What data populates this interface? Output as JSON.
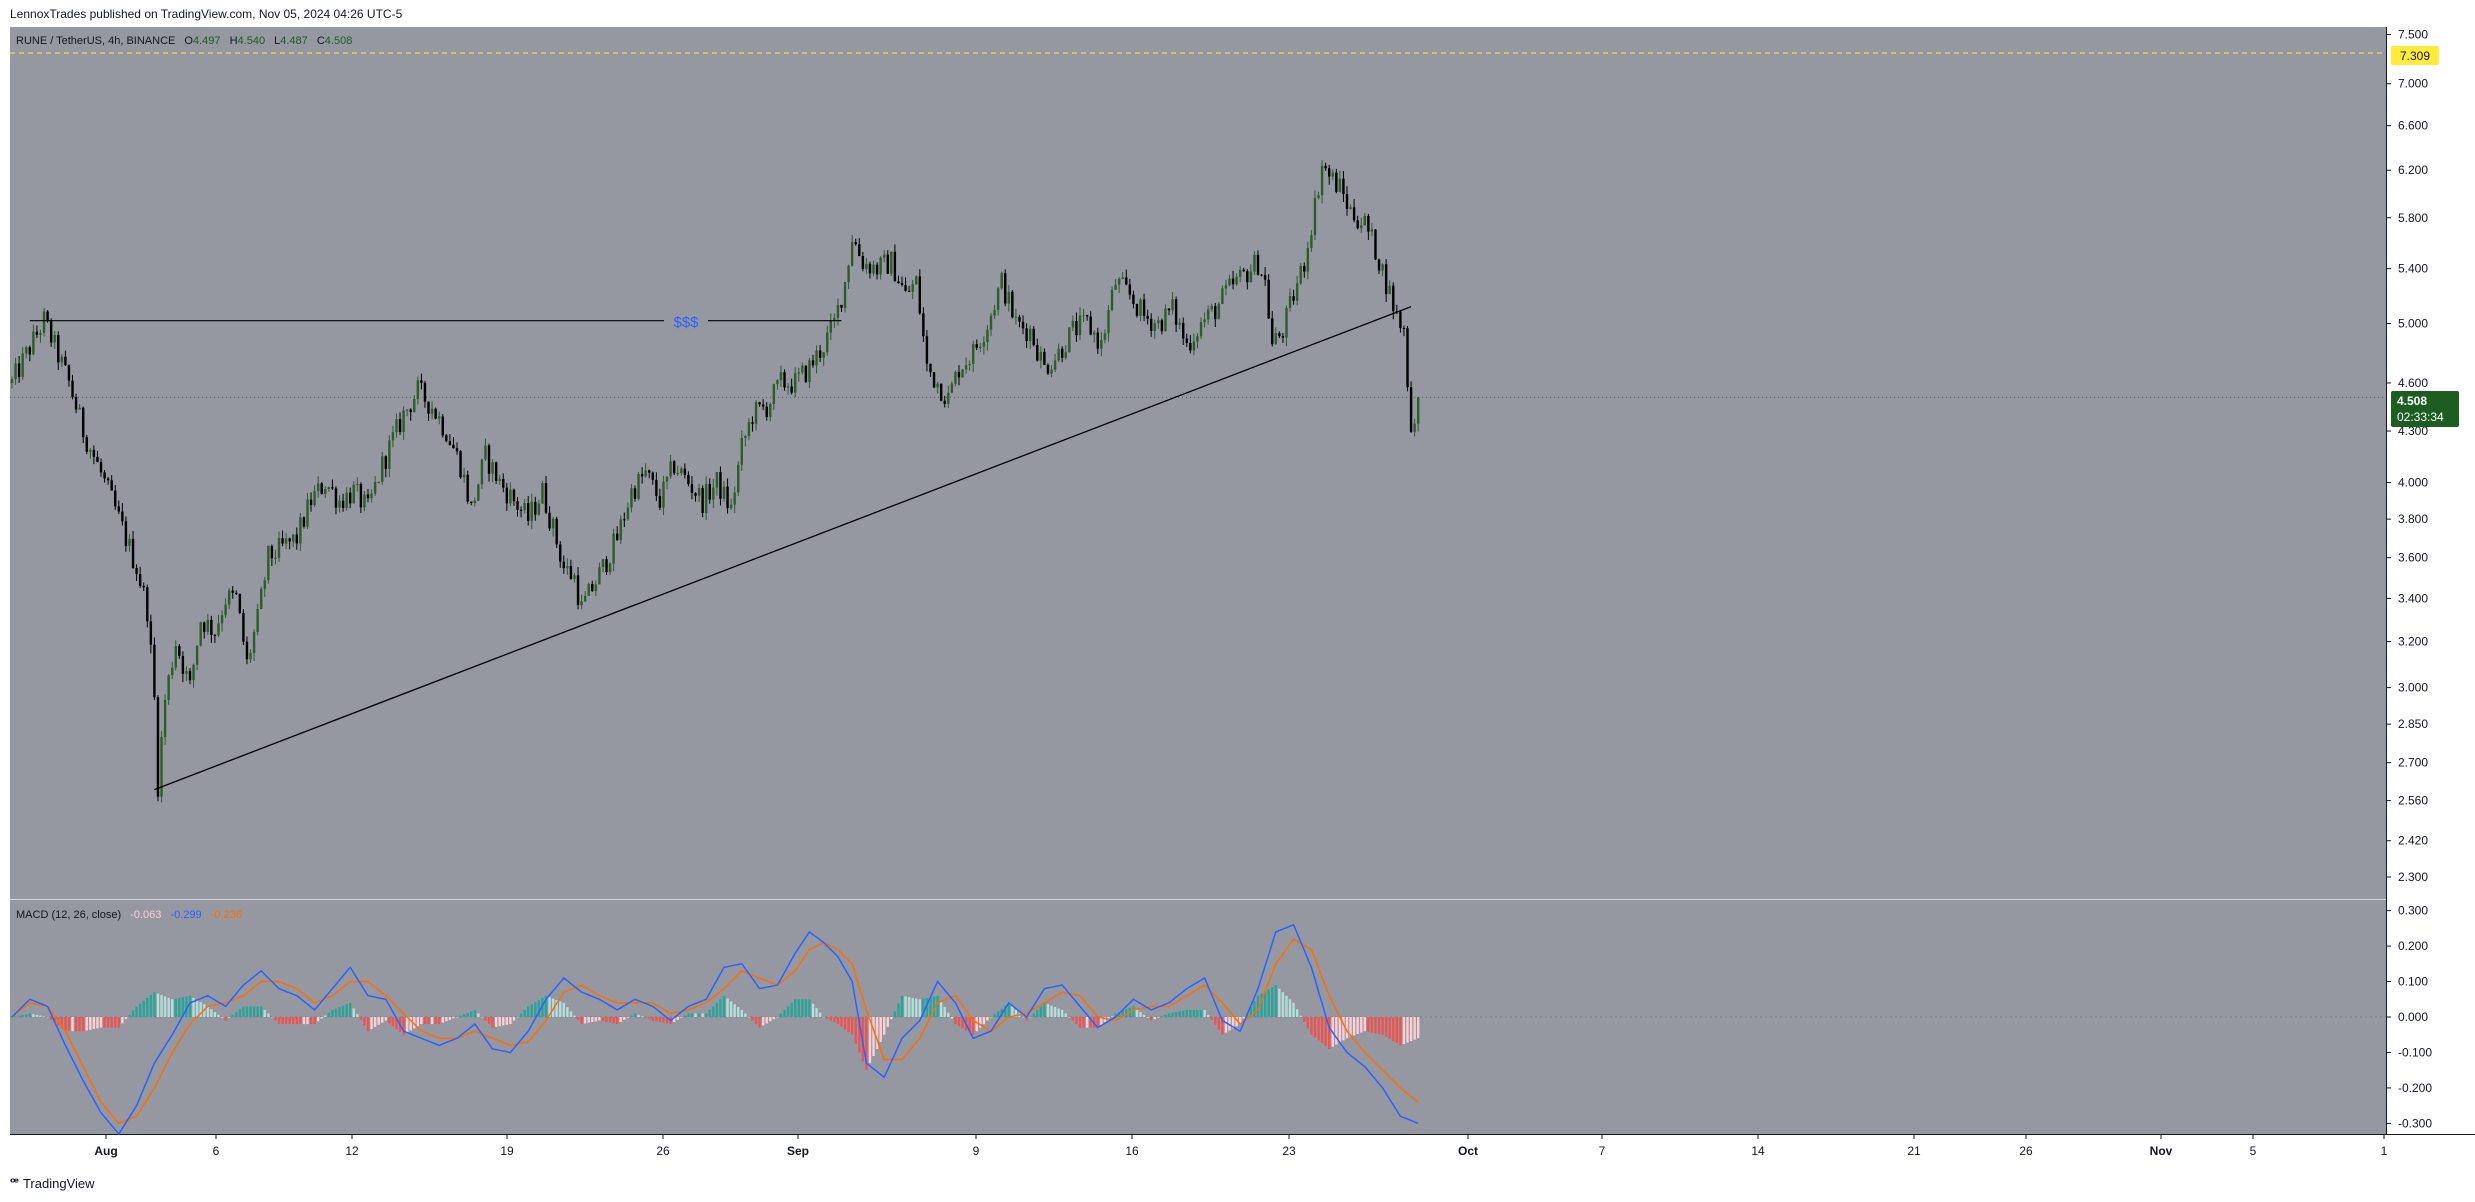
{
  "header": {
    "published": "LennoxTrades published on TradingView.com, Nov 05, 2024 04:26 UTC-5"
  },
  "legend": {
    "symbol": "RUNE / TetherUS, 4h, BINANCE",
    "o_label": "O",
    "o_value": "4.497",
    "h_label": "H",
    "h_value": "4.540",
    "l_label": "L",
    "l_value": "4.487",
    "c_label": "C",
    "c_value": "4.508"
  },
  "macd_legend": {
    "title": "MACD (12, 26, close)",
    "hist": "-0.063",
    "macd": "-0.299",
    "signal": "-0.236"
  },
  "annotation": {
    "text": "$$$"
  },
  "price_badge": {
    "value": "4.508",
    "countdown": "02:33:34"
  },
  "alert_badge": {
    "value": "7.309"
  },
  "footer": {
    "brand": "TradingView"
  },
  "colors": {
    "pane_bg": "#9598a1",
    "up": "#2e5d2b",
    "down": "#000000",
    "macd_line": "#2962ff",
    "signal_line": "#ff6d00",
    "hist_pos": "#b2dfdb",
    "hist_pos_strong": "#26a69a",
    "hist_neg": "#ffcdd2",
    "hist_neg_strong": "#ef5350",
    "badge_green": "#1b5e20",
    "alert_yellow": "#ffeb3b"
  },
  "chart_data": [
    {
      "type": "candlestick",
      "title": "RUNE / TetherUS, 4h, BINANCE",
      "x_ticks": [
        "Aug",
        "6",
        "12",
        "19",
        "26",
        "Sep",
        "9",
        "16",
        "23",
        "Oct",
        "7",
        "14",
        "21",
        "26",
        "Nov",
        "5",
        "1"
      ],
      "y_ticks": [
        "7.500",
        "7.000",
        "6.600",
        "6.200",
        "5.800",
        "5.400",
        "5.000",
        "4.600",
        "4.300",
        "4.000",
        "3.800",
        "3.600",
        "3.400",
        "3.200",
        "3.000",
        "2.850",
        "2.700",
        "2.560",
        "2.420",
        "2.300"
      ],
      "ylim": [
        2.23,
        7.58
      ],
      "y_scale": "log",
      "price_path": [
        [
          0,
          4.6
        ],
        [
          9,
          5.02
        ],
        [
          16,
          4.6
        ],
        [
          20,
          4.3
        ],
        [
          26,
          4.0
        ],
        [
          31,
          3.75
        ],
        [
          35,
          3.55
        ],
        [
          38,
          3.35
        ],
        [
          40,
          2.95
        ],
        [
          41,
          2.62
        ],
        [
          43,
          2.95
        ],
        [
          46,
          3.2
        ],
        [
          50,
          3.0
        ],
        [
          53,
          3.3
        ],
        [
          57,
          3.25
        ],
        [
          60,
          3.4
        ],
        [
          63,
          3.4
        ],
        [
          66,
          3.1
        ],
        [
          69,
          3.3
        ],
        [
          72,
          3.6
        ],
        [
          76,
          3.65
        ],
        [
          80,
          3.7
        ],
        [
          84,
          3.9
        ],
        [
          88,
          4.0
        ],
        [
          92,
          3.9
        ],
        [
          96,
          3.95
        ],
        [
          100,
          3.85
        ],
        [
          104,
          4.1
        ],
        [
          110,
          4.4
        ],
        [
          114,
          4.55
        ],
        [
          118,
          4.45
        ],
        [
          122,
          4.3
        ],
        [
          126,
          4.1
        ],
        [
          129,
          3.85
        ],
        [
          133,
          4.15
        ],
        [
          137,
          4.0
        ],
        [
          141,
          3.9
        ],
        [
          145,
          3.8
        ],
        [
          149,
          3.95
        ],
        [
          152,
          3.75
        ],
        [
          155,
          3.55
        ],
        [
          158,
          3.5
        ],
        [
          160,
          3.35
        ],
        [
          163,
          3.45
        ],
        [
          166,
          3.55
        ],
        [
          170,
          3.7
        ],
        [
          174,
          3.95
        ],
        [
          178,
          4.05
        ],
        [
          182,
          3.9
        ],
        [
          186,
          4.1
        ],
        [
          190,
          4.0
        ],
        [
          194,
          3.9
        ],
        [
          198,
          4.0
        ],
        [
          202,
          3.85
        ],
        [
          205,
          4.2
        ],
        [
          208,
          4.4
        ],
        [
          212,
          4.45
        ],
        [
          216,
          4.6
        ],
        [
          220,
          4.6
        ],
        [
          224,
          4.7
        ],
        [
          228,
          4.85
        ],
        [
          231,
          5.0
        ],
        [
          234,
          5.3
        ],
        [
          236,
          5.65
        ],
        [
          239,
          5.45
        ],
        [
          243,
          5.4
        ],
        [
          247,
          5.45
        ],
        [
          251,
          5.2
        ],
        [
          254,
          5.3
        ],
        [
          257,
          4.7
        ],
        [
          260,
          4.6
        ],
        [
          263,
          4.5
        ],
        [
          266,
          4.7
        ],
        [
          270,
          4.8
        ],
        [
          274,
          5.0
        ],
        [
          278,
          5.3
        ],
        [
          282,
          5.0
        ],
        [
          286,
          4.95
        ],
        [
          290,
          4.7
        ],
        [
          294,
          4.8
        ],
        [
          298,
          4.95
        ],
        [
          302,
          5.0
        ],
        [
          306,
          4.85
        ],
        [
          310,
          5.3
        ],
        [
          314,
          5.2
        ],
        [
          318,
          5.05
        ],
        [
          322,
          5.0
        ],
        [
          326,
          5.1
        ],
        [
          330,
          4.85
        ],
        [
          334,
          5.0
        ],
        [
          338,
          5.1
        ],
        [
          342,
          5.25
        ],
        [
          346,
          5.35
        ],
        [
          350,
          5.45
        ],
        [
          352,
          5.3
        ],
        [
          354,
          4.85
        ],
        [
          357,
          4.95
        ],
        [
          360,
          5.2
        ],
        [
          363,
          5.45
        ],
        [
          366,
          5.9
        ],
        [
          368,
          6.25
        ],
        [
          370,
          6.15
        ],
        [
          373,
          6.05
        ],
        [
          376,
          5.85
        ],
        [
          380,
          5.75
        ],
        [
          383,
          5.55
        ],
        [
          386,
          5.3
        ],
        [
          389,
          5.05
        ],
        [
          391,
          4.95
        ],
        [
          393,
          4.3
        ],
        [
          395,
          4.5
        ]
      ],
      "last": 4.508,
      "trendline": {
        "from": [
          40,
          2.6
        ],
        "to": [
          393,
          5.12
        ]
      },
      "horizontal_line": {
        "from": 5,
        "to": 233,
        "value": 5.02,
        "label": "$$$"
      },
      "alert_level": 7.309,
      "current_price_line": 4.508
    },
    {
      "type": "line",
      "title": "MACD (12, 26, close)",
      "series": [
        {
          "name": "MACD",
          "values": [
            [
              0,
              0.0
            ],
            [
              5,
              0.05
            ],
            [
              10,
              0.03
            ],
            [
              15,
              -0.08
            ],
            [
              20,
              -0.18
            ],
            [
              25,
              -0.27
            ],
            [
              30,
              -0.33
            ],
            [
              35,
              -0.25
            ],
            [
              40,
              -0.13
            ],
            [
              45,
              -0.05
            ],
            [
              50,
              0.04
            ],
            [
              55,
              0.06
            ],
            [
              60,
              0.03
            ],
            [
              65,
              0.09
            ],
            [
              70,
              0.13
            ],
            [
              75,
              0.08
            ],
            [
              80,
              0.06
            ],
            [
              85,
              0.02
            ],
            [
              90,
              0.08
            ],
            [
              95,
              0.14
            ],
            [
              100,
              0.06
            ],
            [
              105,
              0.05
            ],
            [
              110,
              -0.04
            ],
            [
              115,
              -0.06
            ],
            [
              120,
              -0.08
            ],
            [
              125,
              -0.06
            ],
            [
              130,
              -0.02
            ],
            [
              135,
              -0.09
            ],
            [
              140,
              -0.1
            ],
            [
              145,
              -0.04
            ],
            [
              150,
              0.05
            ],
            [
              155,
              0.11
            ],
            [
              160,
              0.07
            ],
            [
              165,
              0.05
            ],
            [
              170,
              0.02
            ],
            [
              175,
              0.05
            ],
            [
              180,
              0.03
            ],
            [
              185,
              -0.01
            ],
            [
              190,
              0.03
            ],
            [
              195,
              0.05
            ],
            [
              200,
              0.14
            ],
            [
              205,
              0.15
            ],
            [
              210,
              0.08
            ],
            [
              215,
              0.09
            ],
            [
              220,
              0.18
            ],
            [
              224,
              0.24
            ],
            [
              228,
              0.21
            ],
            [
              232,
              0.17
            ],
            [
              236,
              0.1
            ],
            [
              240,
              -0.13
            ],
            [
              245,
              -0.17
            ],
            [
              250,
              -0.06
            ],
            [
              255,
              -0.01
            ],
            [
              260,
              0.1
            ],
            [
              265,
              0.04
            ],
            [
              270,
              -0.06
            ],
            [
              275,
              -0.04
            ],
            [
              280,
              0.04
            ],
            [
              285,
              0.0
            ],
            [
              290,
              0.08
            ],
            [
              295,
              0.09
            ],
            [
              300,
              0.03
            ],
            [
              305,
              -0.03
            ],
            [
              310,
              0.0
            ],
            [
              315,
              0.05
            ],
            [
              320,
              0.02
            ],
            [
              325,
              0.04
            ],
            [
              330,
              0.08
            ],
            [
              335,
              0.11
            ],
            [
              340,
              -0.01
            ],
            [
              345,
              -0.04
            ],
            [
              350,
              0.08
            ],
            [
              355,
              0.24
            ],
            [
              360,
              0.26
            ],
            [
              365,
              0.14
            ],
            [
              370,
              -0.03
            ],
            [
              375,
              -0.1
            ],
            [
              380,
              -0.14
            ],
            [
              385,
              -0.2
            ],
            [
              390,
              -0.28
            ],
            [
              395,
              -0.3
            ]
          ]
        },
        {
          "name": "Signal",
          "values": [
            [
              0,
              0.0
            ],
            [
              5,
              0.04
            ],
            [
              10,
              0.03
            ],
            [
              15,
              -0.04
            ],
            [
              20,
              -0.14
            ],
            [
              25,
              -0.24
            ],
            [
              30,
              -0.3
            ],
            [
              35,
              -0.28
            ],
            [
              40,
              -0.2
            ],
            [
              45,
              -0.1
            ],
            [
              50,
              -0.02
            ],
            [
              55,
              0.03
            ],
            [
              60,
              0.04
            ],
            [
              65,
              0.06
            ],
            [
              70,
              0.1
            ],
            [
              75,
              0.1
            ],
            [
              80,
              0.08
            ],
            [
              85,
              0.04
            ],
            [
              90,
              0.06
            ],
            [
              95,
              0.1
            ],
            [
              100,
              0.1
            ],
            [
              105,
              0.06
            ],
            [
              110,
              0.01
            ],
            [
              115,
              -0.04
            ],
            [
              120,
              -0.06
            ],
            [
              125,
              -0.06
            ],
            [
              130,
              -0.04
            ],
            [
              135,
              -0.06
            ],
            [
              140,
              -0.08
            ],
            [
              145,
              -0.07
            ],
            [
              150,
              -0.01
            ],
            [
              155,
              0.07
            ],
            [
              160,
              0.09
            ],
            [
              165,
              0.06
            ],
            [
              170,
              0.04
            ],
            [
              175,
              0.04
            ],
            [
              180,
              0.04
            ],
            [
              185,
              0.01
            ],
            [
              190,
              0.02
            ],
            [
              195,
              0.04
            ],
            [
              200,
              0.08
            ],
            [
              205,
              0.13
            ],
            [
              210,
              0.11
            ],
            [
              215,
              0.09
            ],
            [
              220,
              0.13
            ],
            [
              224,
              0.19
            ],
            [
              228,
              0.21
            ],
            [
              232,
              0.19
            ],
            [
              236,
              0.15
            ],
            [
              240,
              0.02
            ],
            [
              245,
              -0.12
            ],
            [
              250,
              -0.12
            ],
            [
              255,
              -0.06
            ],
            [
              260,
              0.04
            ],
            [
              265,
              0.06
            ],
            [
              270,
              -0.01
            ],
            [
              275,
              -0.04
            ],
            [
              280,
              0.0
            ],
            [
              285,
              0.01
            ],
            [
              290,
              0.04
            ],
            [
              295,
              0.07
            ],
            [
              300,
              0.06
            ],
            [
              305,
              0.0
            ],
            [
              310,
              -0.01
            ],
            [
              315,
              0.02
            ],
            [
              320,
              0.03
            ],
            [
              325,
              0.03
            ],
            [
              330,
              0.06
            ],
            [
              335,
              0.09
            ],
            [
              340,
              0.04
            ],
            [
              345,
              -0.02
            ],
            [
              350,
              0.02
            ],
            [
              355,
              0.15
            ],
            [
              360,
              0.22
            ],
            [
              365,
              0.19
            ],
            [
              370,
              0.06
            ],
            [
              375,
              -0.04
            ],
            [
              380,
              -0.1
            ],
            [
              385,
              -0.15
            ],
            [
              390,
              -0.2
            ],
            [
              395,
              -0.24
            ]
          ]
        }
      ],
      "y_ticks": [
        "0.300",
        "0.200",
        "0.100",
        "0.000",
        "-0.100",
        "-0.200",
        "-0.300"
      ],
      "ylim": [
        -0.33,
        0.33
      ]
    }
  ]
}
